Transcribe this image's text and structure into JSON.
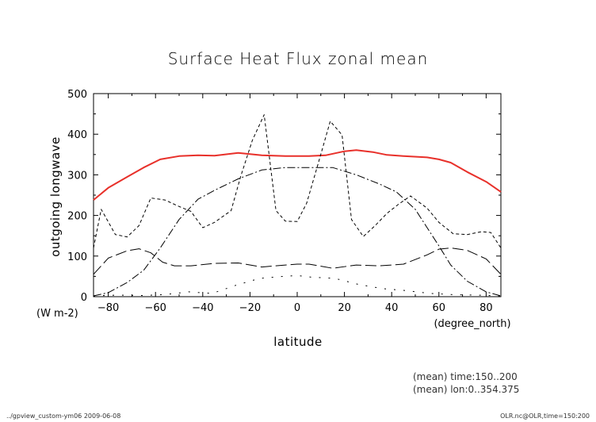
{
  "chart_data": {
    "type": "line",
    "title": "Surface Heat Flux zonal mean",
    "xlabel": "latitude",
    "ylabel": "outgoing longwave",
    "yunits": "(W m-2)",
    "xunits": "(degree_north)",
    "xlim": [
      -86.25,
      86.25
    ],
    "ylim": [
      0,
      500
    ],
    "xticks": [
      -80,
      -60,
      -40,
      -20,
      0,
      20,
      40,
      60,
      80
    ],
    "xtick_labels": [
      "−80",
      "−60",
      "−40",
      "−20",
      "0",
      "20",
      "40",
      "60",
      "80"
    ],
    "yticks": [
      0,
      100,
      200,
      300,
      400,
      500
    ],
    "ytick_labels": [
      "0",
      "100",
      "200",
      "300",
      "400",
      "500"
    ],
    "grid": false,
    "legend": "none",
    "series": [
      {
        "style": "solid",
        "color": "#e8302a",
        "width": 2,
        "x": [
          -86.25,
          -80,
          -72,
          -65,
          -58,
          -50,
          -42,
          -35,
          -25,
          -15,
          -5,
          5,
          12,
          20,
          25,
          32,
          38,
          45,
          55,
          60,
          65,
          72,
          80,
          86.25
        ],
        "y": [
          238,
          268,
          295,
          318,
          338,
          346,
          348,
          347,
          354,
          348,
          346,
          346,
          348,
          358,
          361,
          356,
          349,
          346,
          343,
          338,
          330,
          307,
          283,
          258
        ]
      },
      {
        "style": "dashed",
        "color": "#000000",
        "width": 1,
        "x": [
          -86.25,
          -83,
          -77,
          -72,
          -67,
          -62,
          -56,
          -50,
          -45,
          -40,
          -35,
          -28,
          -24,
          -19,
          -14,
          -9,
          -5,
          0,
          4,
          9,
          14,
          19,
          23,
          28,
          33,
          38,
          43,
          48,
          55,
          60,
          66,
          72,
          78,
          82,
          86.25
        ],
        "y": [
          120,
          215,
          153,
          147,
          175,
          243,
          238,
          222,
          210,
          170,
          183,
          212,
          295,
          385,
          448,
          212,
          186,
          185,
          230,
          330,
          432,
          398,
          190,
          148,
          175,
          205,
          228,
          248,
          218,
          183,
          155,
          153,
          160,
          158,
          120
        ]
      },
      {
        "style": "dashdot",
        "color": "#000000",
        "width": 1,
        "x": [
          -86.25,
          -80,
          -72,
          -65,
          -58,
          -50,
          -42,
          -35,
          -25,
          -15,
          -5,
          5,
          15,
          25,
          35,
          42,
          50,
          55,
          60,
          65,
          72,
          80,
          86.25
        ],
        "y": [
          2,
          10,
          35,
          65,
          120,
          190,
          240,
          262,
          290,
          312,
          318,
          318,
          318,
          300,
          277,
          258,
          215,
          170,
          125,
          78,
          38,
          12,
          2
        ]
      },
      {
        "style": "longdash",
        "color": "#000000",
        "width": 1,
        "x": [
          -86.25,
          -80,
          -72,
          -67,
          -62,
          -57,
          -52,
          -45,
          -35,
          -25,
          -15,
          -5,
          0,
          5,
          15,
          25,
          35,
          45,
          55,
          60,
          65,
          72,
          80,
          86.25
        ],
        "y": [
          55,
          95,
          113,
          118,
          108,
          85,
          76,
          76,
          82,
          83,
          73,
          78,
          80,
          80,
          70,
          78,
          76,
          80,
          103,
          117,
          120,
          114,
          93,
          55
        ]
      },
      {
        "style": "dotted",
        "color": "#000000",
        "width": 1,
        "x": [
          -86.25,
          -76,
          -66,
          -56,
          -46,
          -36,
          -26,
          -16,
          -6,
          0,
          6,
          16,
          26,
          36,
          46,
          56,
          66,
          76,
          86.25
        ],
        "y": [
          2,
          4,
          3,
          5,
          12,
          8,
          28,
          45,
          50,
          52,
          48,
          45,
          30,
          20,
          15,
          8,
          5,
          4,
          2
        ]
      }
    ]
  },
  "footer": {
    "mean_time": "(mean) time:150..200",
    "mean_lon": "(mean) lon:0..354.375",
    "left_note": "../gpview_custom-ym06  2009-06-08",
    "right_note": "OLR.nc@OLR,time=150:200"
  }
}
